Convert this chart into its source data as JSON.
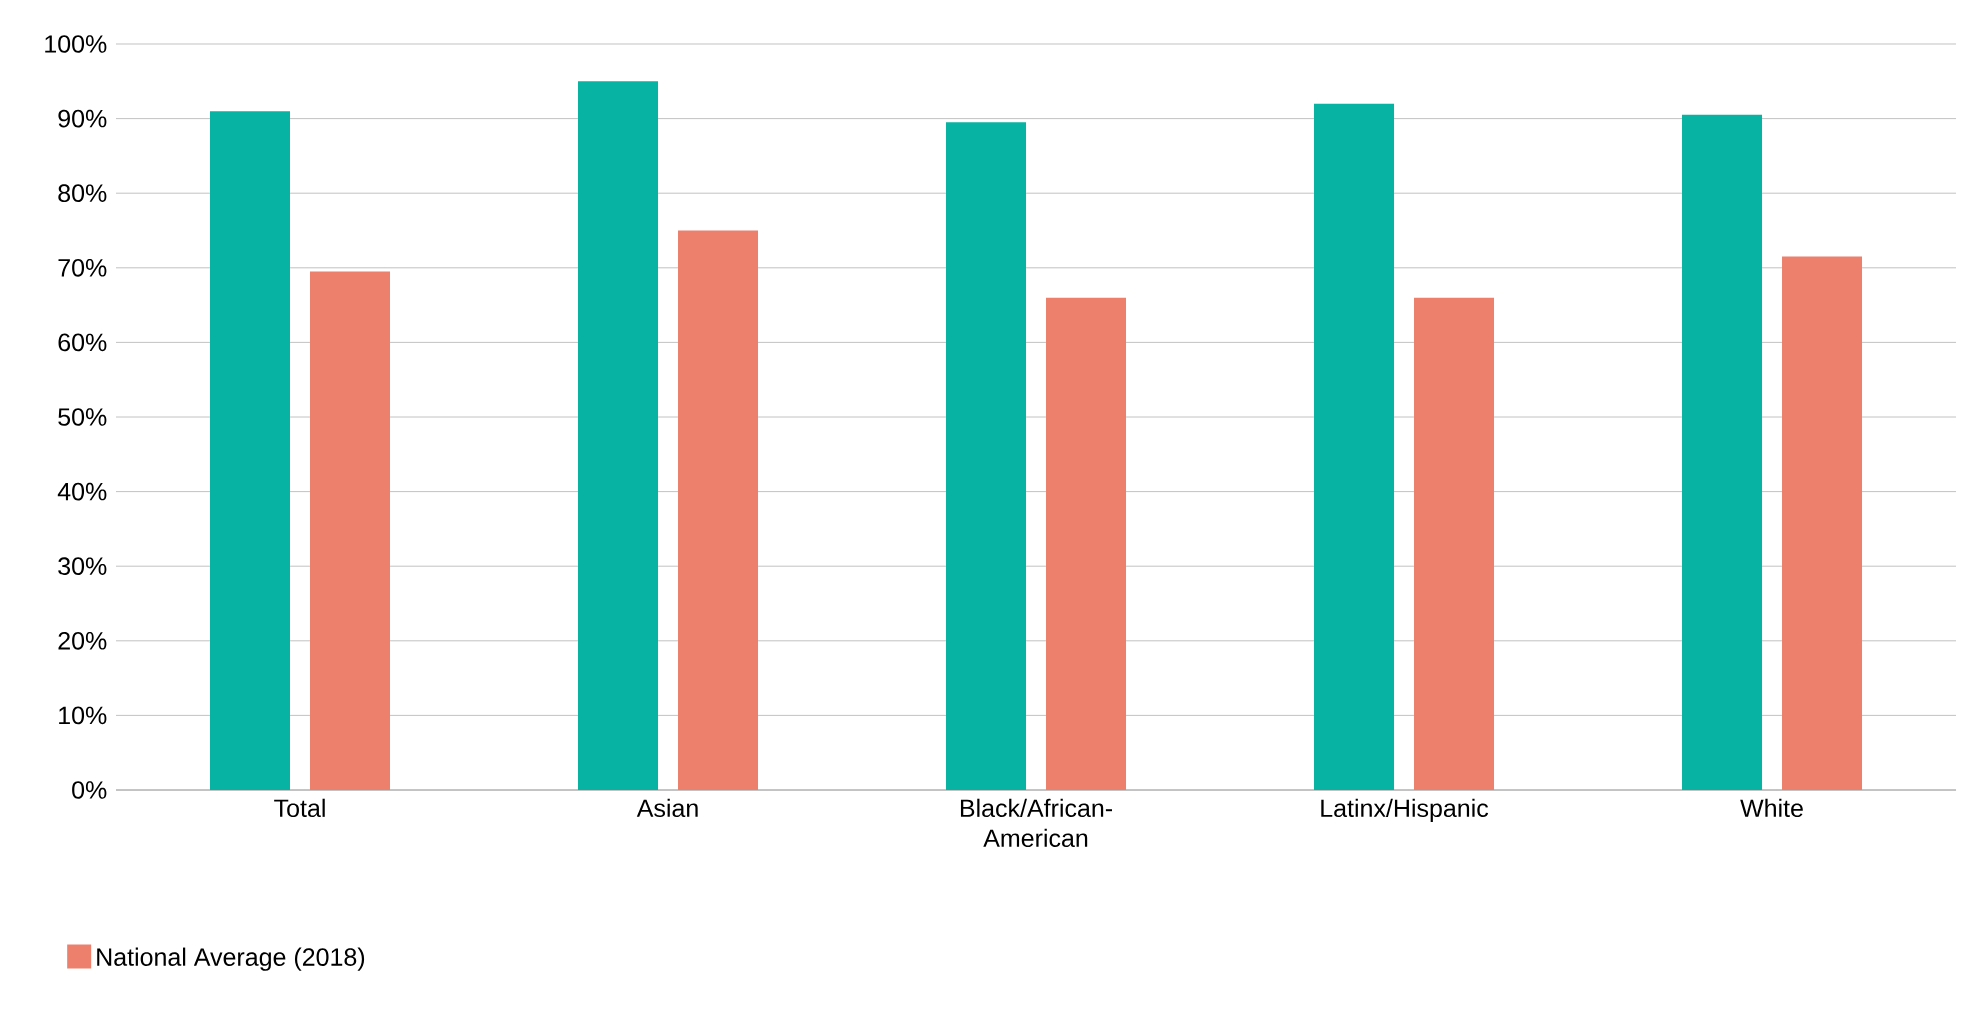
{
  "chart_data": {
    "type": "bar",
    "categories": [
      "Total",
      "Asian",
      "Black/African-American",
      "Latinx/Hispanic",
      "White"
    ],
    "series": [
      {
        "color": "#07b3a2",
        "values": [
          91,
          95,
          89.5,
          92,
          90.5
        ]
      },
      {
        "name": "National Average (2018)",
        "color": "#ec806c",
        "values": [
          69.5,
          75,
          66,
          66,
          71.5
        ]
      }
    ],
    "ylim": [
      0,
      100
    ],
    "yticks": [
      {
        "value": 0,
        "label": "0%"
      },
      {
        "value": 10,
        "label": "10%"
      },
      {
        "value": 20,
        "label": "20%"
      },
      {
        "value": 30,
        "label": "30%"
      },
      {
        "value": 40,
        "label": "40%"
      },
      {
        "value": 50,
        "label": "50%"
      },
      {
        "value": 60,
        "label": "60%"
      },
      {
        "value": 70,
        "label": "70%"
      },
      {
        "value": 80,
        "label": "80%"
      },
      {
        "value": 90,
        "label": "90%"
      },
      {
        "value": 100,
        "label": "100%"
      }
    ],
    "grid": "y",
    "legend": "bottom left"
  }
}
